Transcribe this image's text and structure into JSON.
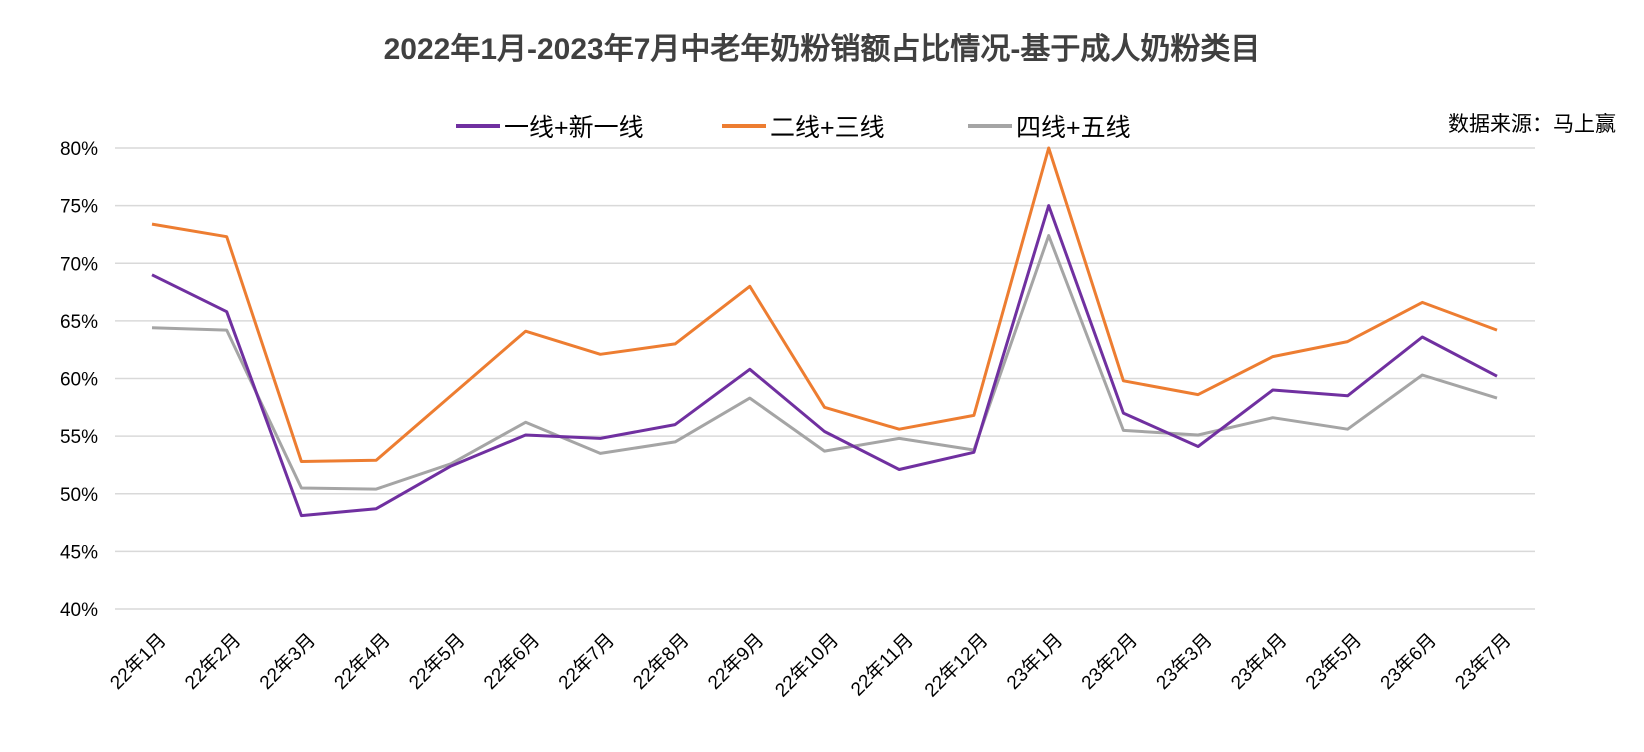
{
  "chart_data": {
    "type": "line",
    "title": "2022年1月-2023年7月中老年奶粉销额占比情况-基于成人奶粉类目",
    "source": "数据来源：马上赢",
    "xlabel": "",
    "ylabel": "",
    "ylim": [
      0.4,
      0.8
    ],
    "yticks": [
      0.4,
      0.45,
      0.5,
      0.55,
      0.6,
      0.65,
      0.7,
      0.75,
      0.8
    ],
    "ytick_labels": [
      "40%",
      "45%",
      "50%",
      "55%",
      "60%",
      "65%",
      "70%",
      "75%",
      "80%"
    ],
    "grid": true,
    "legend_position": "top-center",
    "categories": [
      "22年1月",
      "22年2月",
      "22年3月",
      "22年4月",
      "22年5月",
      "22年6月",
      "22年7月",
      "22年8月",
      "22年9月",
      "22年10月",
      "22年11月",
      "22年12月",
      "23年1月",
      "23年2月",
      "23年3月",
      "23年4月",
      "23年5月",
      "23年6月",
      "23年7月"
    ],
    "series": [
      {
        "name": "一线+新一线",
        "color": "#7030a0",
        "values": [
          0.69,
          0.658,
          0.481,
          0.487,
          0.524,
          0.551,
          0.548,
          0.56,
          0.608,
          0.554,
          0.521,
          0.536,
          0.75,
          0.57,
          0.541,
          0.59,
          0.585,
          0.636,
          0.602
        ]
      },
      {
        "name": "二线+三线",
        "color": "#ed7d31",
        "values": [
          0.734,
          0.723,
          0.528,
          0.529,
          0.585,
          0.641,
          0.621,
          0.63,
          0.68,
          0.575,
          0.556,
          0.568,
          0.8,
          0.598,
          0.586,
          0.619,
          0.632,
          0.666,
          0.642
        ]
      },
      {
        "name": "四线+五线",
        "color": "#a5a5a5",
        "values": [
          0.644,
          0.642,
          0.505,
          0.504,
          0.526,
          0.562,
          0.535,
          0.545,
          0.583,
          0.537,
          0.548,
          0.538,
          0.724,
          0.555,
          0.551,
          0.566,
          0.556,
          0.603,
          0.583
        ]
      }
    ]
  }
}
